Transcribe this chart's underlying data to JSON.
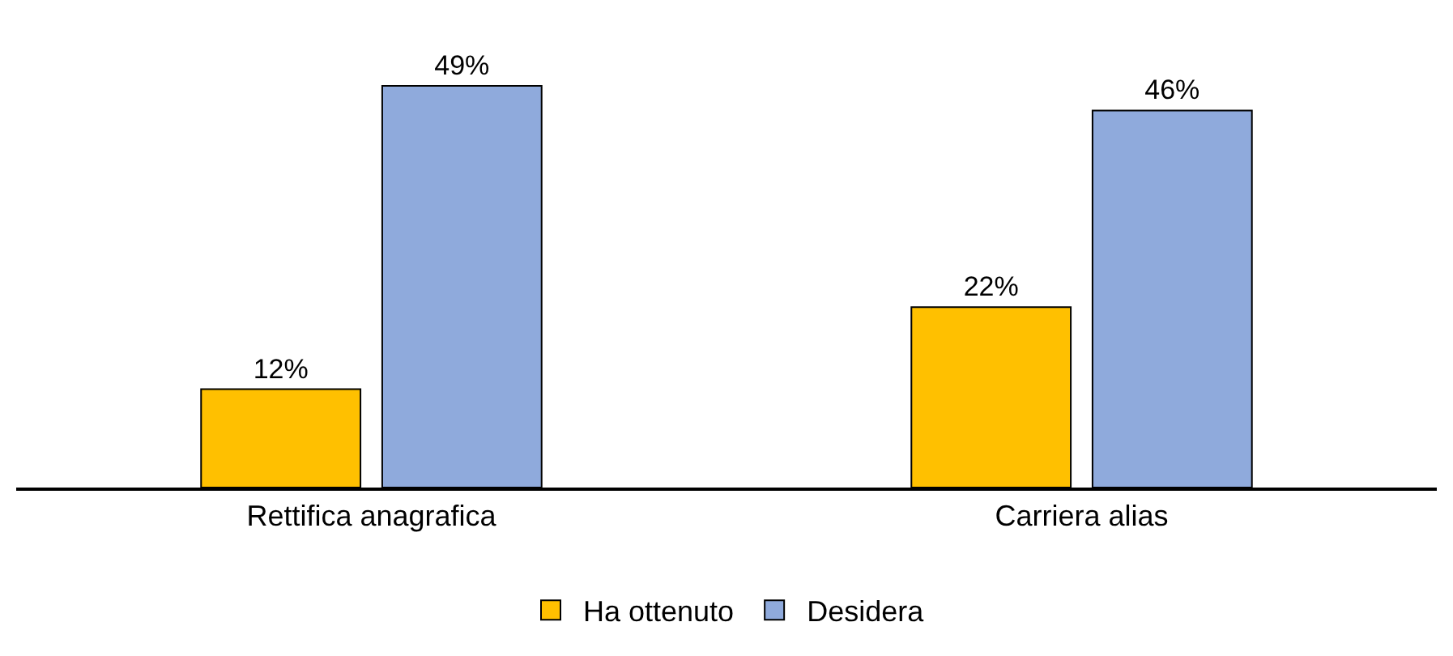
{
  "chart_data": {
    "type": "bar",
    "categories": [
      "Rettifica anagrafica",
      "Carriera alias"
    ],
    "series": [
      {
        "name": "Ha ottenuto",
        "color": "#ffc000",
        "values": [
          12,
          22
        ],
        "value_labels": [
          "12%",
          "22%"
        ]
      },
      {
        "name": "Desidera",
        "color": "#8faadc",
        "values": [
          49,
          46
        ],
        "value_labels": [
          "49%",
          "46%"
        ]
      }
    ],
    "legend": "bottom",
    "grid": false
  }
}
